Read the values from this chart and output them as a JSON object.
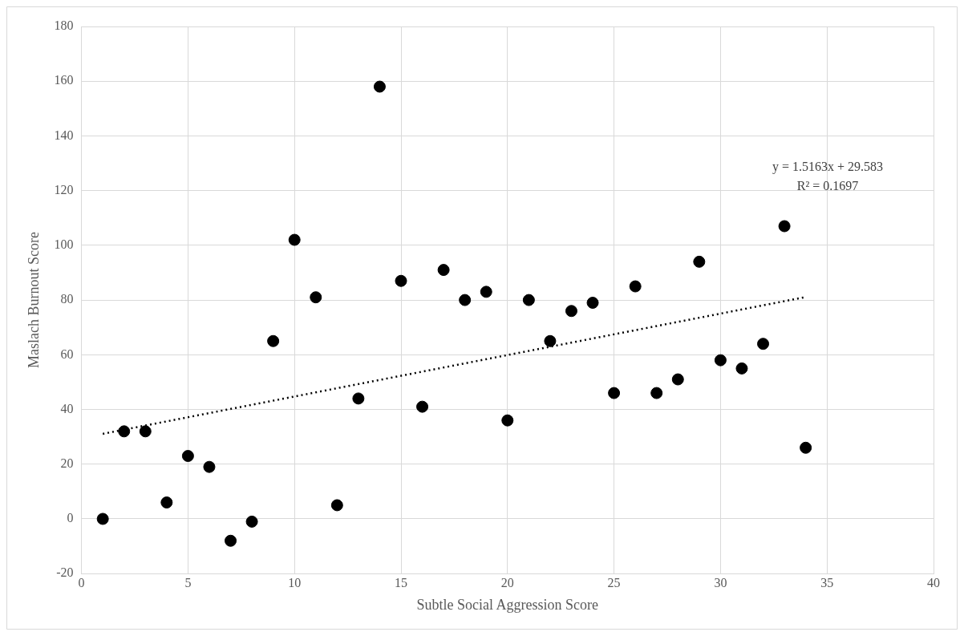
{
  "chart_data": {
    "type": "scatter",
    "xlabel": "Subtle Social Aggression Score",
    "ylabel": "Maslach Burnout Score",
    "annotations": [
      "y = 1.5163x + 29.583",
      "R² = 0.1697"
    ],
    "series": [
      {
        "color": "#000000",
        "marker": "circle",
        "x": [
          1,
          2,
          3,
          4,
          5,
          6,
          7,
          8,
          9,
          10,
          11,
          12,
          13,
          14,
          15,
          16,
          17,
          18,
          19,
          20,
          21,
          22,
          23,
          24,
          25,
          26,
          27,
          28,
          29,
          30,
          31,
          32,
          33,
          34
        ],
        "values": [
          0,
          32,
          32,
          6,
          23,
          19,
          -8,
          -1,
          65,
          102,
          81,
          5,
          44,
          158,
          87,
          41,
          91,
          80,
          83,
          36,
          80,
          65,
          76,
          79,
          46,
          85,
          46,
          51,
          94,
          58,
          55,
          64,
          107,
          26
        ]
      },
      {
        "type": "line",
        "color": "#000000",
        "marker": "none",
        "line_style": "dotted",
        "x": [
          1,
          34
        ],
        "values": [
          31.1,
          81.1
        ]
      }
    ],
    "xlim": [
      0,
      40
    ],
    "xticks": [
      0,
      5,
      10,
      15,
      20,
      25,
      30,
      35,
      40
    ],
    "ylim": [
      -20,
      180
    ],
    "yticks": [
      -20,
      0,
      20,
      40,
      60,
      80,
      100,
      120,
      140,
      160,
      180
    ],
    "grid": true,
    "legend": false
  }
}
